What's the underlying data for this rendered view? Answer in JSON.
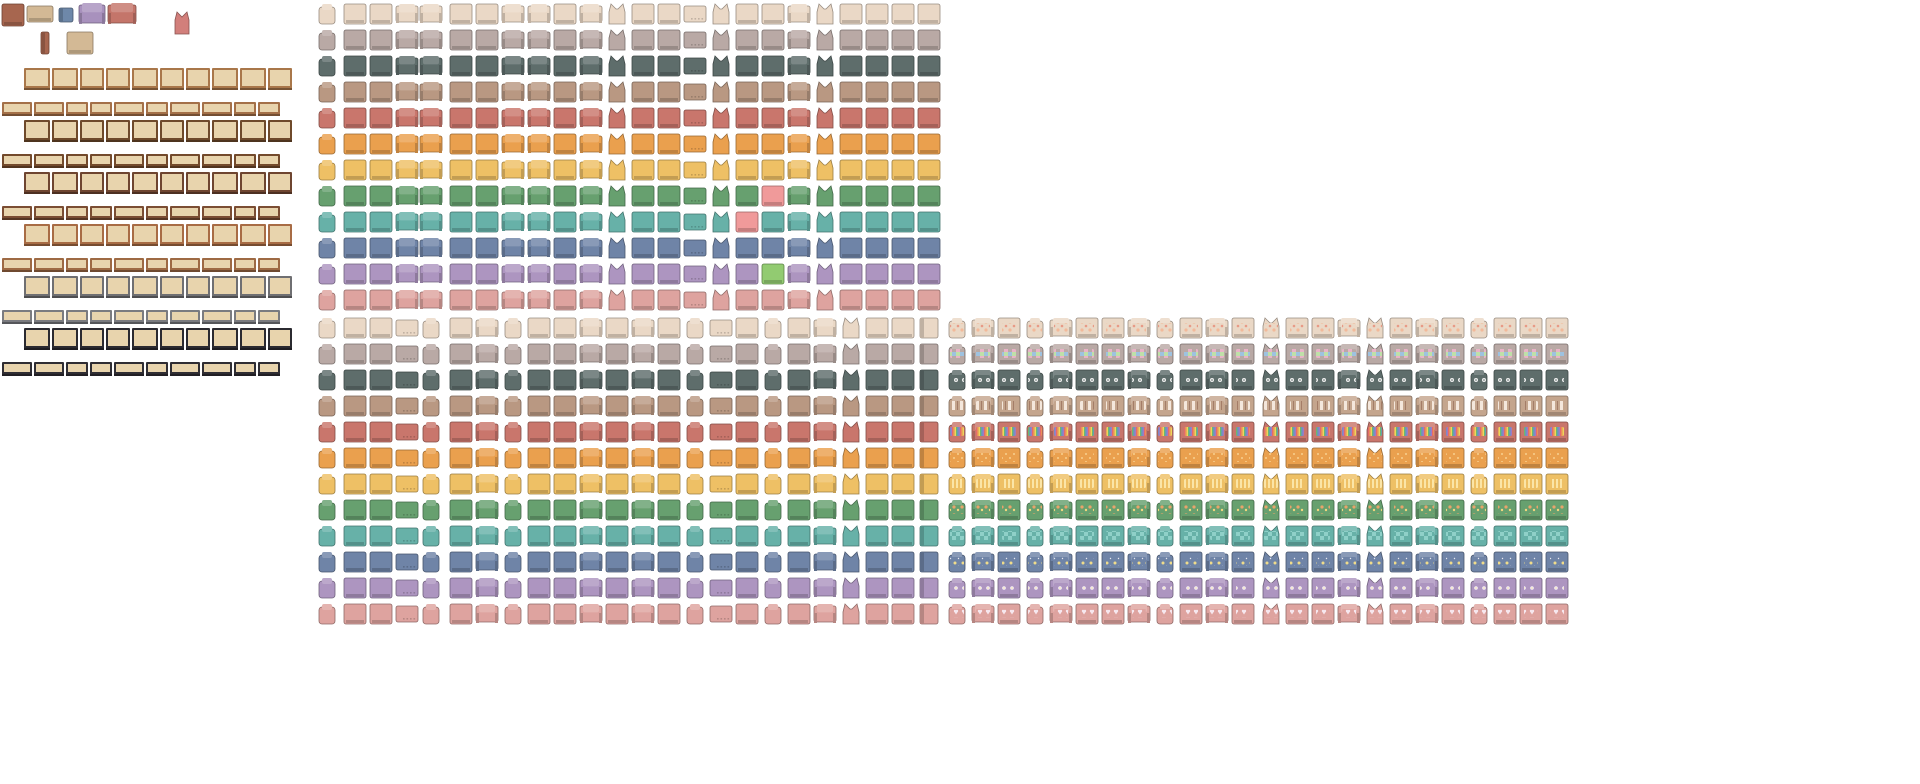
{
  "sheet": {
    "background": "#ffffff",
    "icons": {
      "cube": "cube-sprite-icon",
      "bed": "bed-sprite-icon",
      "couch": "couch-sprite-icon",
      "chair": "armchair-sprite-icon",
      "crib": "crib-sprite-icon",
      "kitty": "kitty-armchair-icon"
    }
  },
  "misc": {
    "colors": [
      "#a7664f",
      "#d3b995",
      "#6e88a9",
      "#a891bd",
      "#c4756a",
      "#d27f7b"
    ]
  },
  "cribs": {
    "wood_colors": [
      "#a9774a",
      "#a47048",
      "#6f4a2b",
      "#734a2c",
      "#6e4530",
      "#7b4d33",
      "#a86c45",
      "#9e6a44",
      "#6f6f72",
      "#7a7b80",
      "#2b2a30",
      "#2f2d33"
    ],
    "mattress_color": "#e8d4ad"
  },
  "plain_grid": {
    "palette": [
      "#ead8c6",
      "#b9a9a5",
      "#5e6d6b",
      "#b99882",
      "#c9766c",
      "#eaa04e",
      "#eec065",
      "#67a06f",
      "#67b1a8",
      "#6f84a7",
      "#ad95c0",
      "#dea39f"
    ],
    "accent_top": [
      [
        "7",
        "#f09a9a"
      ],
      [
        "10",
        "#92cb71"
      ]
    ]
  },
  "pattern_grid": {
    "rows": [
      {
        "base": "#ead8c6",
        "pattern": "floral-peach"
      },
      {
        "base": "#b9a9a5",
        "pattern": "patchwork"
      },
      {
        "base": "#5e6d6b",
        "pattern": "skull-floral"
      },
      {
        "base": "#c4a58d",
        "pattern": "stripes"
      },
      {
        "base": "#c9766c",
        "pattern": "rainbow"
      },
      {
        "base": "#eaa04e",
        "pattern": "dots"
      },
      {
        "base": "#eec065",
        "pattern": "checks-yellow"
      },
      {
        "base": "#67a06f",
        "pattern": "floral-green"
      },
      {
        "base": "#67b1a8",
        "pattern": "checks-teal"
      },
      {
        "base": "#6f84a7",
        "pattern": "moons"
      },
      {
        "base": "#ad95c0",
        "pattern": "lilac-daisies"
      },
      {
        "base": "#dea39f",
        "pattern": "hearts"
      }
    ]
  }
}
